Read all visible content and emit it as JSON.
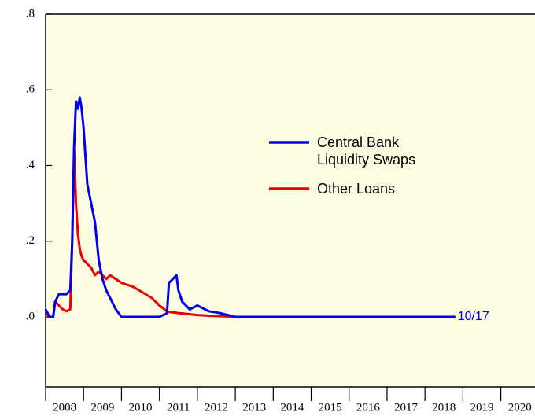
{
  "chart_data": {
    "type": "line",
    "categories": [
      "2008",
      "2009",
      "2010",
      "2011",
      "2012",
      "2013",
      "2014",
      "2015",
      "2016",
      "2017",
      "2018",
      "2019",
      "2020"
    ],
    "xlim": [
      2008,
      2020.9
    ],
    "xticks": [
      2008,
      2009,
      2010,
      2011,
      2012,
      2013,
      2014,
      2015,
      2016,
      2017,
      2018,
      2019,
      2020
    ],
    "ylim": [
      -0.185,
      0.8
    ],
    "yticks": [
      {
        "value": 0,
        "label": ".0"
      },
      {
        "value": 0.2,
        "label": ".2"
      },
      {
        "value": 0.4,
        "label": ".4"
      },
      {
        "value": 0.6,
        "label": ".6"
      },
      {
        "value": 0.8,
        "label": ".8"
      }
    ],
    "x": [
      2008.0,
      2008.1,
      2008.2,
      2008.25,
      2008.35,
      2008.45,
      2008.55,
      2008.65,
      2008.7,
      2008.75,
      2008.8,
      2008.85,
      2008.9,
      2008.95,
      2009.0,
      2009.1,
      2009.2,
      2009.3,
      2009.4,
      2009.5,
      2009.6,
      2009.7,
      2009.85,
      2010.0,
      2010.3,
      2010.55,
      2010.8,
      2011.0,
      2011.2,
      2011.25,
      2011.35,
      2011.45,
      2011.5,
      2011.6,
      2011.8,
      2012.0,
      2012.3,
      2012.6,
      2013.0,
      2016.0,
      2018.8
    ],
    "series": [
      {
        "name": "Central Bank Liquidity Swaps",
        "color": "#0000ee",
        "values": [
          0.02,
          0,
          0,
          0.04,
          0.06,
          0.06,
          0.06,
          0.07,
          0.2,
          0.45,
          0.57,
          0.55,
          0.58,
          0.55,
          0.5,
          0.35,
          0.3,
          0.25,
          0.15,
          0.1,
          0.07,
          0.05,
          0.02,
          0,
          0,
          0,
          0,
          0,
          0.01,
          0.09,
          0.1,
          0.11,
          0.07,
          0.04,
          0.02,
          0.03,
          0.015,
          0.01,
          0,
          0,
          0
        ]
      },
      {
        "name": "Other Loans",
        "color": "#ee0000",
        "values": [
          0,
          0,
          0,
          0.04,
          0.03,
          0.02,
          0.015,
          0.02,
          0.2,
          0.44,
          0.3,
          0.22,
          0.18,
          0.16,
          0.15,
          0.14,
          0.13,
          0.11,
          0.12,
          0.11,
          0.1,
          0.11,
          0.1,
          0.09,
          0.08,
          0.065,
          0.05,
          0.03,
          0.015,
          0.013,
          0.012,
          0.011,
          0.01,
          0.009,
          0.007,
          0.005,
          0.003,
          0.002,
          0,
          0,
          0
        ]
      }
    ],
    "annotation": "10/17",
    "annotation_color": "#0000ee",
    "background": "#fdfde3"
  }
}
